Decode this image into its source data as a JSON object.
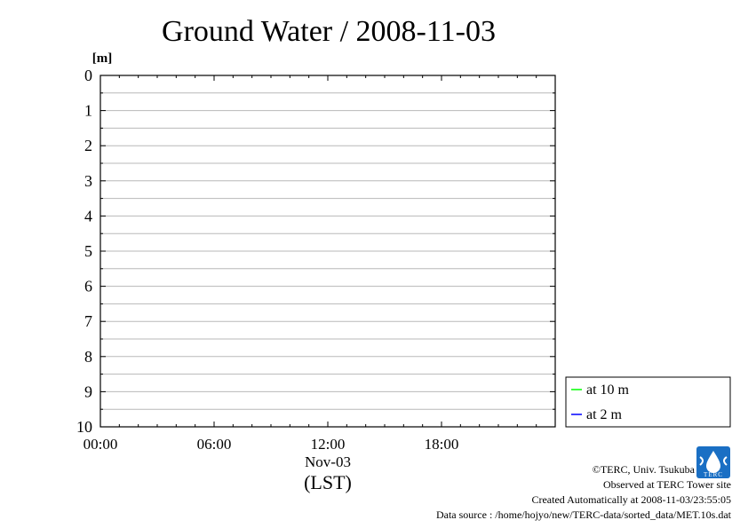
{
  "chart_data": {
    "type": "line",
    "title": "Ground Water / 2008-11-03",
    "ylabel": "[m]",
    "ylim": [
      0,
      10
    ],
    "y_inverted": true,
    "y_ticks": [
      "0",
      "1",
      "2",
      "3",
      "4",
      "5",
      "6",
      "7",
      "8",
      "9",
      "10"
    ],
    "y_minor_step": 0.5,
    "xlim": [
      "2008-11-03 00:00",
      "2008-11-04 00:00"
    ],
    "x_ticks": [
      "00:00",
      "06:00",
      "12:00",
      "18:00"
    ],
    "x_date_label": "Nov-03",
    "xlabel": "(LST)",
    "grid": true,
    "legend_position": "right",
    "series": [
      {
        "name": "at 10 m",
        "color": "#00ff00",
        "values": []
      },
      {
        "name": "at 2 m",
        "color": "#0000ff",
        "values": []
      }
    ]
  },
  "credits": {
    "copyright": "©TERC, Univ. Tsukuba",
    "observed": "Observed at TERC Tower site",
    "created": "Created Automatically at 2008-11-03/23:55:05",
    "source": "Data source : /home/hojyo/new/TERC-data/sorted_data/MET.10s.dat",
    "logo_text": "TERC",
    "logo_color": "#1a6fc4"
  }
}
